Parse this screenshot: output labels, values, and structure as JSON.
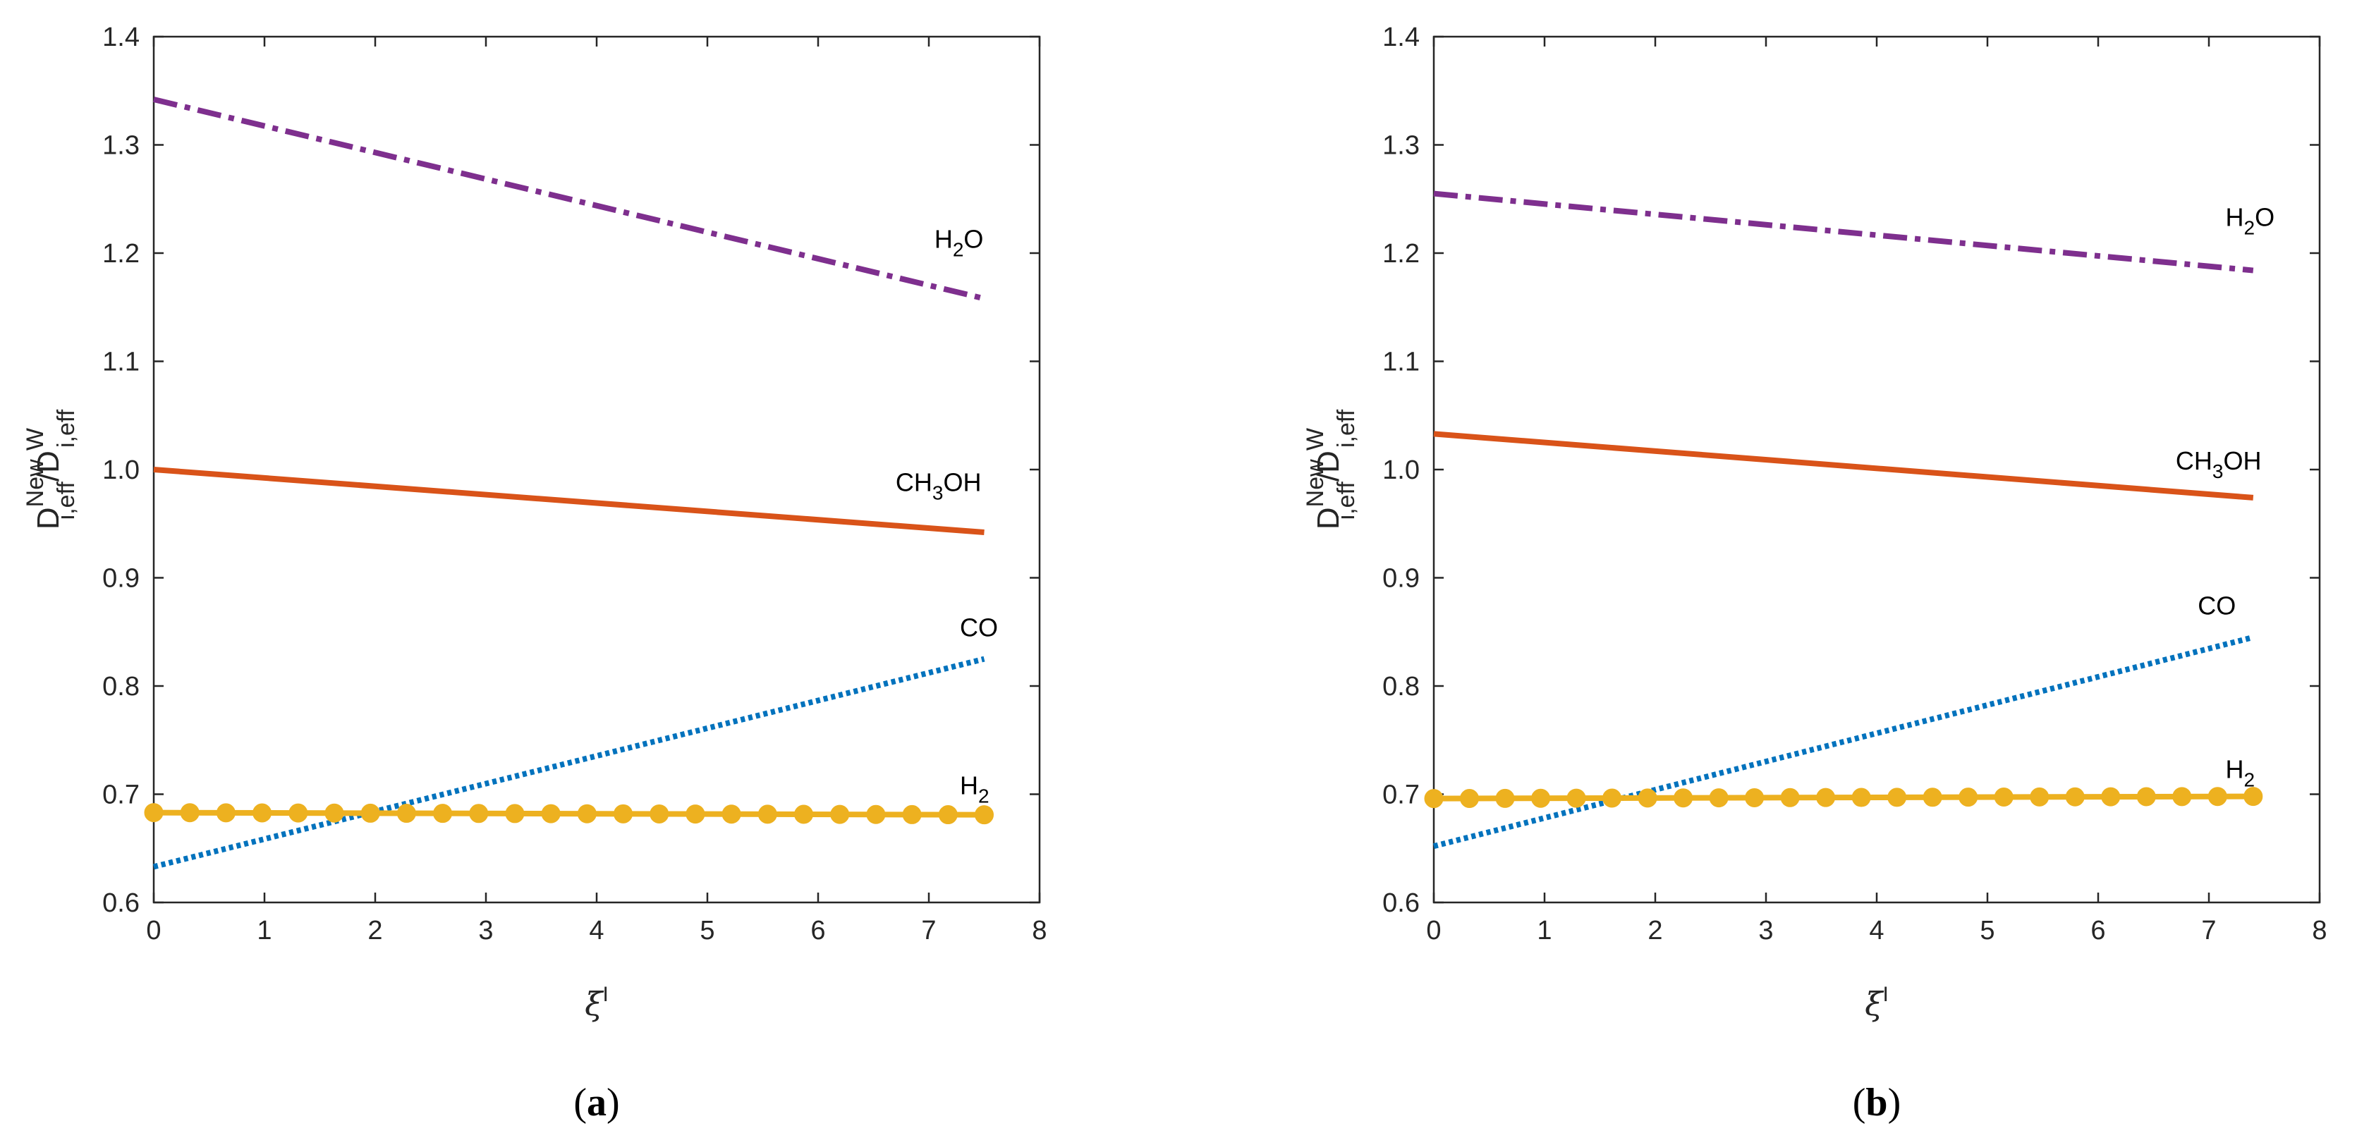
{
  "colors": {
    "H2": "#EDB120",
    "CO": "#0072BD",
    "CH3OH": "#D95319",
    "H2O": "#7E2F8E",
    "axis": "#262626"
  },
  "chart_data": [
    {
      "type": "line",
      "panel": "(a)",
      "panel_open": "(",
      "panel_letter": "a",
      "panel_close": ")",
      "xlabel_main": "ξ",
      "xlabel_sup": "I",
      "ylabel": {
        "base": "D",
        "sup1": "New",
        "sub1": "i,eff",
        "slash": "/",
        "base2": "D",
        "sup2": "W",
        "sub2": "i,eff"
      },
      "xlim": [
        0,
        8
      ],
      "ylim": [
        0.6,
        1.4
      ],
      "xticks": [
        "0",
        "1",
        "2",
        "3",
        "4",
        "5",
        "6",
        "7",
        "8"
      ],
      "yticks": [
        "0.6",
        "0.7",
        "0.8",
        "0.9",
        "1.0",
        "1.1",
        "1.2",
        "1.3",
        "1.4"
      ],
      "series": [
        {
          "name": "H2O",
          "label_main": "H",
          "label_sub": "2",
          "label_rest": "O",
          "style": "dashdot",
          "x": [
            0,
            7.5
          ],
          "values": [
            1.342,
            1.158
          ],
          "label_at": [
            7.05,
            1.205
          ]
        },
        {
          "name": "CH3OH",
          "label_main": "CH",
          "label_sub": "3",
          "label_rest": "OH",
          "style": "solid",
          "x": [
            0,
            7.5
          ],
          "values": [
            1.0,
            0.942
          ],
          "label_at": [
            6.7,
            0.98
          ]
        },
        {
          "name": "CO",
          "label_main": "CO",
          "label_sub": "",
          "label_rest": "",
          "style": "dotted",
          "x": [
            0,
            7.5
          ],
          "values": [
            0.633,
            0.825
          ],
          "label_at": [
            7.28,
            0.846
          ]
        },
        {
          "name": "H2",
          "label_main": "H",
          "label_sub": "2",
          "label_rest": "",
          "style": "marker",
          "x": [
            0,
            7.5
          ],
          "values": [
            0.683,
            0.681
          ],
          "markers": 24,
          "label_at": [
            7.28,
            0.7
          ]
        }
      ]
    },
    {
      "type": "line",
      "panel": "(b)",
      "panel_open": "(",
      "panel_letter": "b",
      "panel_close": ")",
      "xlabel_main": "ξ",
      "xlabel_sup": "I",
      "ylabel": {
        "base": "D",
        "sup1": "New",
        "sub1": "i,eff",
        "slash": "/",
        "base2": "D",
        "sup2": "W",
        "sub2": "i,eff"
      },
      "xlim": [
        0,
        8
      ],
      "ylim": [
        0.6,
        1.4
      ],
      "xticks": [
        "0",
        "1",
        "2",
        "3",
        "4",
        "5",
        "6",
        "7",
        "8"
      ],
      "yticks": [
        "0.6",
        "0.7",
        "0.8",
        "0.9",
        "1.0",
        "1.1",
        "1.2",
        "1.3",
        "1.4"
      ],
      "series": [
        {
          "name": "H2O",
          "label_main": "H",
          "label_sub": "2",
          "label_rest": "O",
          "style": "dashdot",
          "x": [
            0,
            7.4
          ],
          "values": [
            1.255,
            1.184
          ],
          "label_at": [
            7.15,
            1.225
          ]
        },
        {
          "name": "CH3OH",
          "label_main": "CH",
          "label_sub": "3",
          "label_rest": "OH",
          "style": "solid",
          "x": [
            0,
            7.4
          ],
          "values": [
            1.033,
            0.974
          ],
          "label_at": [
            6.7,
            1.0
          ]
        },
        {
          "name": "CO",
          "label_main": "CO",
          "label_sub": "",
          "label_rest": "",
          "style": "dotted",
          "x": [
            0,
            7.4
          ],
          "values": [
            0.652,
            0.845
          ],
          "label_at": [
            6.9,
            0.866
          ]
        },
        {
          "name": "H2",
          "label_main": "H",
          "label_sub": "2",
          "label_rest": "",
          "style": "marker",
          "x": [
            0,
            7.4
          ],
          "values": [
            0.696,
            0.698
          ],
          "markers": 24,
          "label_at": [
            7.15,
            0.715
          ]
        }
      ]
    }
  ]
}
